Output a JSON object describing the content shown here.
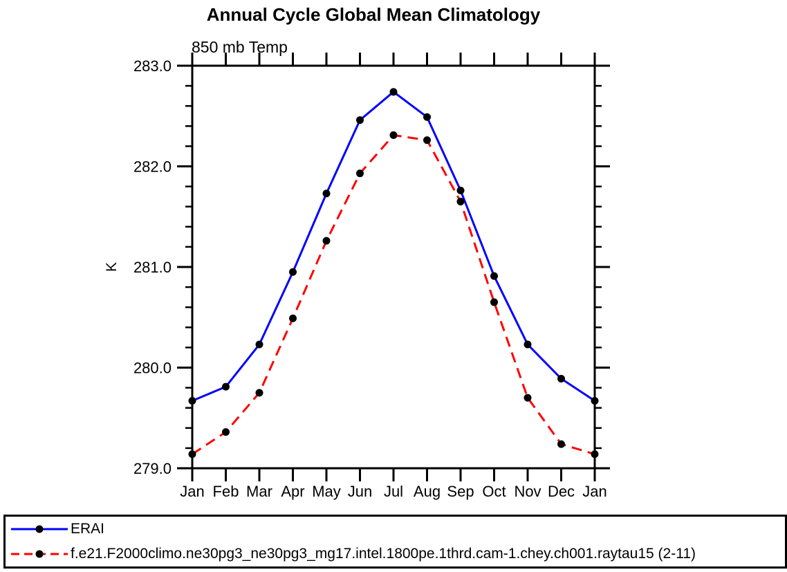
{
  "chart_data": {
    "type": "line",
    "title": "Annual Cycle Global Mean Climatology",
    "subtitle": "850 mb Temp",
    "ylabel": "K",
    "ylim": [
      279.0,
      283.0
    ],
    "ytick_labels": [
      "279.0",
      "280.0",
      "281.0",
      "282.0",
      "283.0"
    ],
    "yticks_major": [
      279.0,
      280.0,
      281.0,
      282.0,
      283.0
    ],
    "yminor_step": 0.2,
    "grid": false,
    "legend_position": "bottom-left-box",
    "categories": [
      "Jan",
      "Feb",
      "Mar",
      "Apr",
      "May",
      "Jun",
      "Jul",
      "Aug",
      "Sep",
      "Oct",
      "Nov",
      "Dec",
      "Jan"
    ],
    "axis_color": "#000000",
    "marker_color": "#000000",
    "series": [
      {
        "name": "ERAI",
        "color": "#0000ff",
        "line_style": "solid",
        "marker": "filled-circle",
        "values": [
          279.67,
          279.81,
          280.23,
          280.95,
          281.73,
          282.46,
          282.74,
          282.49,
          281.76,
          280.91,
          280.23,
          279.89,
          279.67
        ]
      },
      {
        "name": "f.e21.F2000climo.ne30pg3_ne30pg3_mg17.intel.1800pe.1thrd.cam-1.chey.ch001.raytau15 (2-11)",
        "color": "#ff0000",
        "line_style": "dashed",
        "marker": "filled-circle",
        "values": [
          279.14,
          279.36,
          279.75,
          280.49,
          281.26,
          281.93,
          282.31,
          282.26,
          281.65,
          280.65,
          279.7,
          279.24,
          279.14
        ]
      }
    ]
  }
}
